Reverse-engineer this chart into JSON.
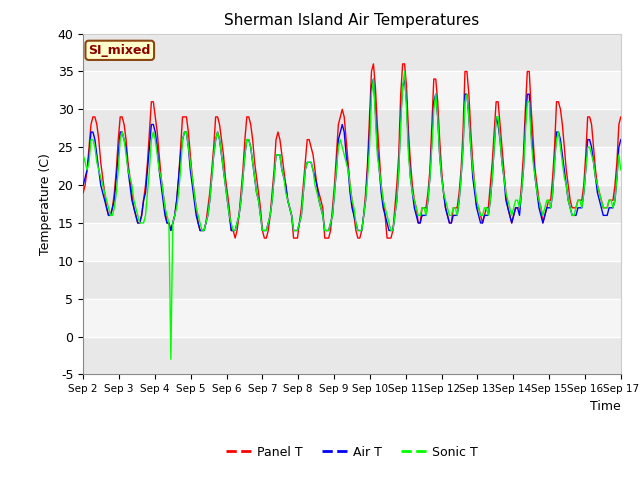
{
  "title": "Sherman Island Air Temperatures",
  "xlabel": "Time",
  "ylabel": "Temperature (C)",
  "ylim": [
    -5,
    40
  ],
  "yticks": [
    -5,
    0,
    5,
    10,
    15,
    20,
    25,
    30,
    35,
    40
  ],
  "bg_color": "#ffffff",
  "plot_bg": "#ffffff",
  "legend_label": "SI_mixed",
  "series_labels": [
    "Panel T",
    "Air T",
    "Sonic T"
  ],
  "series_colors": [
    "red",
    "blue",
    "lime"
  ],
  "xtick_labels": [
    "Sep 2",
    "Sep 3",
    "Sep 4",
    "Sep 5",
    "Sep 6",
    "Sep 7",
    "Sep 8",
    "Sep 9",
    "Sep 10",
    "Sep 11",
    "Sep 12",
    "Sep 13",
    "Sep 14",
    "Sep 15",
    "Sep 16",
    "Sep 17"
  ],
  "band_colors": [
    "#e8e8e8",
    "#f5f5f5"
  ],
  "panel_t": [
    19,
    20,
    22,
    25,
    28,
    29,
    29,
    28,
    26,
    23,
    21,
    19,
    17,
    16,
    16,
    17,
    19,
    22,
    26,
    29,
    29,
    28,
    26,
    23,
    21,
    19,
    17,
    16,
    15,
    15,
    16,
    18,
    20,
    23,
    27,
    31,
    31,
    29,
    27,
    24,
    21,
    19,
    17,
    15,
    15,
    14,
    15,
    16,
    18,
    21,
    25,
    29,
    29,
    29,
    27,
    24,
    21,
    19,
    17,
    15,
    14,
    14,
    14,
    15,
    17,
    19,
    22,
    25,
    29,
    29,
    28,
    26,
    24,
    21,
    19,
    17,
    14,
    14,
    13,
    14,
    16,
    19,
    22,
    26,
    29,
    29,
    28,
    26,
    23,
    21,
    19,
    17,
    14,
    13,
    13,
    14,
    16,
    19,
    22,
    26,
    27,
    26,
    24,
    22,
    20,
    18,
    17,
    16,
    13,
    13,
    13,
    15,
    17,
    20,
    23,
    26,
    26,
    25,
    24,
    22,
    20,
    19,
    18,
    17,
    13,
    13,
    13,
    14,
    17,
    20,
    24,
    28,
    29,
    30,
    29,
    26,
    23,
    20,
    18,
    16,
    14,
    13,
    13,
    14,
    16,
    19,
    23,
    29,
    35,
    36,
    33,
    28,
    24,
    20,
    18,
    16,
    13,
    13,
    13,
    14,
    17,
    20,
    24,
    32,
    36,
    36,
    33,
    27,
    23,
    20,
    18,
    17,
    15,
    15,
    17,
    17,
    17,
    19,
    22,
    28,
    34,
    34,
    31,
    26,
    22,
    19,
    17,
    16,
    15,
    15,
    17,
    17,
    17,
    19,
    22,
    27,
    35,
    35,
    32,
    27,
    23,
    20,
    17,
    17,
    16,
    15,
    16,
    17,
    17,
    20,
    23,
    27,
    31,
    31,
    28,
    25,
    22,
    19,
    17,
    16,
    15,
    16,
    17,
    17,
    17,
    20,
    24,
    30,
    35,
    35,
    30,
    26,
    22,
    20,
    18,
    17,
    15,
    16,
    17,
    18,
    18,
    21,
    25,
    31,
    31,
    30,
    28,
    25,
    22,
    20,
    18,
    17,
    17,
    17,
    18,
    18,
    18,
    20,
    24,
    29,
    29,
    28,
    25,
    22,
    20,
    19,
    18,
    17,
    17,
    17,
    18,
    18,
    18,
    20,
    23,
    28,
    29
  ],
  "air_t": [
    20,
    21,
    22,
    24,
    27,
    27,
    26,
    24,
    22,
    20,
    19,
    18,
    17,
    16,
    16,
    17,
    18,
    21,
    24,
    27,
    27,
    26,
    25,
    22,
    20,
    18,
    17,
    16,
    15,
    15,
    16,
    18,
    19,
    22,
    25,
    28,
    28,
    27,
    25,
    22,
    20,
    18,
    16,
    15,
    15,
    14,
    15,
    16,
    18,
    21,
    24,
    26,
    27,
    27,
    25,
    22,
    20,
    18,
    16,
    15,
    14,
    14,
    14,
    15,
    16,
    18,
    21,
    24,
    26,
    27,
    26,
    24,
    22,
    20,
    18,
    16,
    14,
    14,
    14,
    15,
    16,
    18,
    21,
    24,
    26,
    26,
    25,
    23,
    21,
    19,
    18,
    16,
    14,
    14,
    14,
    15,
    16,
    18,
    21,
    24,
    24,
    24,
    22,
    21,
    20,
    18,
    17,
    16,
    14,
    14,
    14,
    15,
    16,
    19,
    22,
    23,
    23,
    23,
    22,
    21,
    20,
    18,
    17,
    16,
    14,
    14,
    14,
    15,
    16,
    19,
    22,
    26,
    27,
    28,
    27,
    24,
    22,
    19,
    17,
    16,
    15,
    14,
    14,
    14,
    16,
    18,
    22,
    27,
    33,
    34,
    30,
    25,
    22,
    19,
    17,
    16,
    15,
    14,
    14,
    14,
    16,
    18,
    22,
    29,
    33,
    34,
    31,
    25,
    21,
    19,
    17,
    16,
    15,
    15,
    16,
    16,
    16,
    18,
    21,
    26,
    31,
    32,
    29,
    24,
    21,
    19,
    17,
    16,
    15,
    15,
    16,
    16,
    16,
    18,
    21,
    25,
    32,
    32,
    29,
    25,
    21,
    19,
    17,
    16,
    15,
    15,
    16,
    16,
    16,
    18,
    21,
    25,
    29,
    28,
    26,
    23,
    21,
    18,
    17,
    16,
    15,
    16,
    17,
    17,
    16,
    19,
    22,
    28,
    32,
    32,
    27,
    24,
    21,
    19,
    17,
    16,
    15,
    16,
    17,
    17,
    17,
    19,
    23,
    27,
    27,
    26,
    24,
    22,
    20,
    18,
    17,
    16,
    16,
    16,
    17,
    17,
    17,
    19,
    22,
    26,
    26,
    25,
    23,
    21,
    19,
    18,
    17,
    16,
    16,
    16,
    17,
    17,
    17,
    18,
    21,
    25,
    26
  ],
  "sonic_t": [
    24,
    23,
    22,
    23,
    26,
    26,
    25,
    23,
    22,
    21,
    20,
    19,
    18,
    17,
    16,
    16,
    17,
    19,
    22,
    26,
    27,
    26,
    24,
    22,
    21,
    20,
    18,
    17,
    16,
    15,
    15,
    15,
    16,
    19,
    22,
    26,
    27,
    26,
    24,
    22,
    21,
    19,
    17,
    16,
    15,
    -3,
    15,
    16,
    17,
    19,
    22,
    26,
    27,
    27,
    25,
    23,
    21,
    19,
    17,
    16,
    15,
    14,
    14,
    15,
    16,
    18,
    21,
    24,
    26,
    27,
    26,
    24,
    22,
    20,
    18,
    16,
    15,
    14,
    14,
    15,
    16,
    18,
    21,
    24,
    26,
    26,
    25,
    23,
    21,
    19,
    18,
    16,
    14,
    14,
    14,
    15,
    16,
    18,
    21,
    24,
    24,
    24,
    22,
    21,
    19,
    18,
    17,
    16,
    14,
    14,
    14,
    15,
    16,
    19,
    22,
    23,
    23,
    23,
    22,
    20,
    19,
    18,
    17,
    16,
    14,
    14,
    14,
    15,
    16,
    19,
    22,
    25,
    26,
    25,
    24,
    23,
    22,
    20,
    18,
    17,
    15,
    14,
    14,
    14,
    16,
    18,
    21,
    25,
    32,
    34,
    29,
    24,
    22,
    20,
    18,
    17,
    16,
    15,
    14,
    14,
    16,
    18,
    22,
    28,
    33,
    35,
    30,
    24,
    21,
    19,
    18,
    17,
    16,
    16,
    17,
    17,
    16,
    18,
    21,
    25,
    30,
    32,
    29,
    24,
    21,
    19,
    18,
    17,
    16,
    16,
    17,
    17,
    16,
    18,
    21,
    25,
    31,
    32,
    29,
    25,
    22,
    20,
    18,
    17,
    16,
    16,
    17,
    17,
    16,
    18,
    21,
    25,
    29,
    29,
    26,
    23,
    21,
    19,
    18,
    17,
    16,
    17,
    18,
    18,
    17,
    19,
    22,
    27,
    31,
    31,
    26,
    23,
    21,
    19,
    18,
    17,
    16,
    17,
    18,
    18,
    17,
    19,
    23,
    26,
    27,
    25,
    23,
    21,
    20,
    18,
    17,
    16,
    16,
    17,
    18,
    18,
    17,
    19,
    22,
    25,
    25,
    24,
    23,
    21,
    20,
    19,
    18,
    17,
    17,
    17,
    18,
    18,
    17,
    18,
    21,
    24,
    22
  ]
}
